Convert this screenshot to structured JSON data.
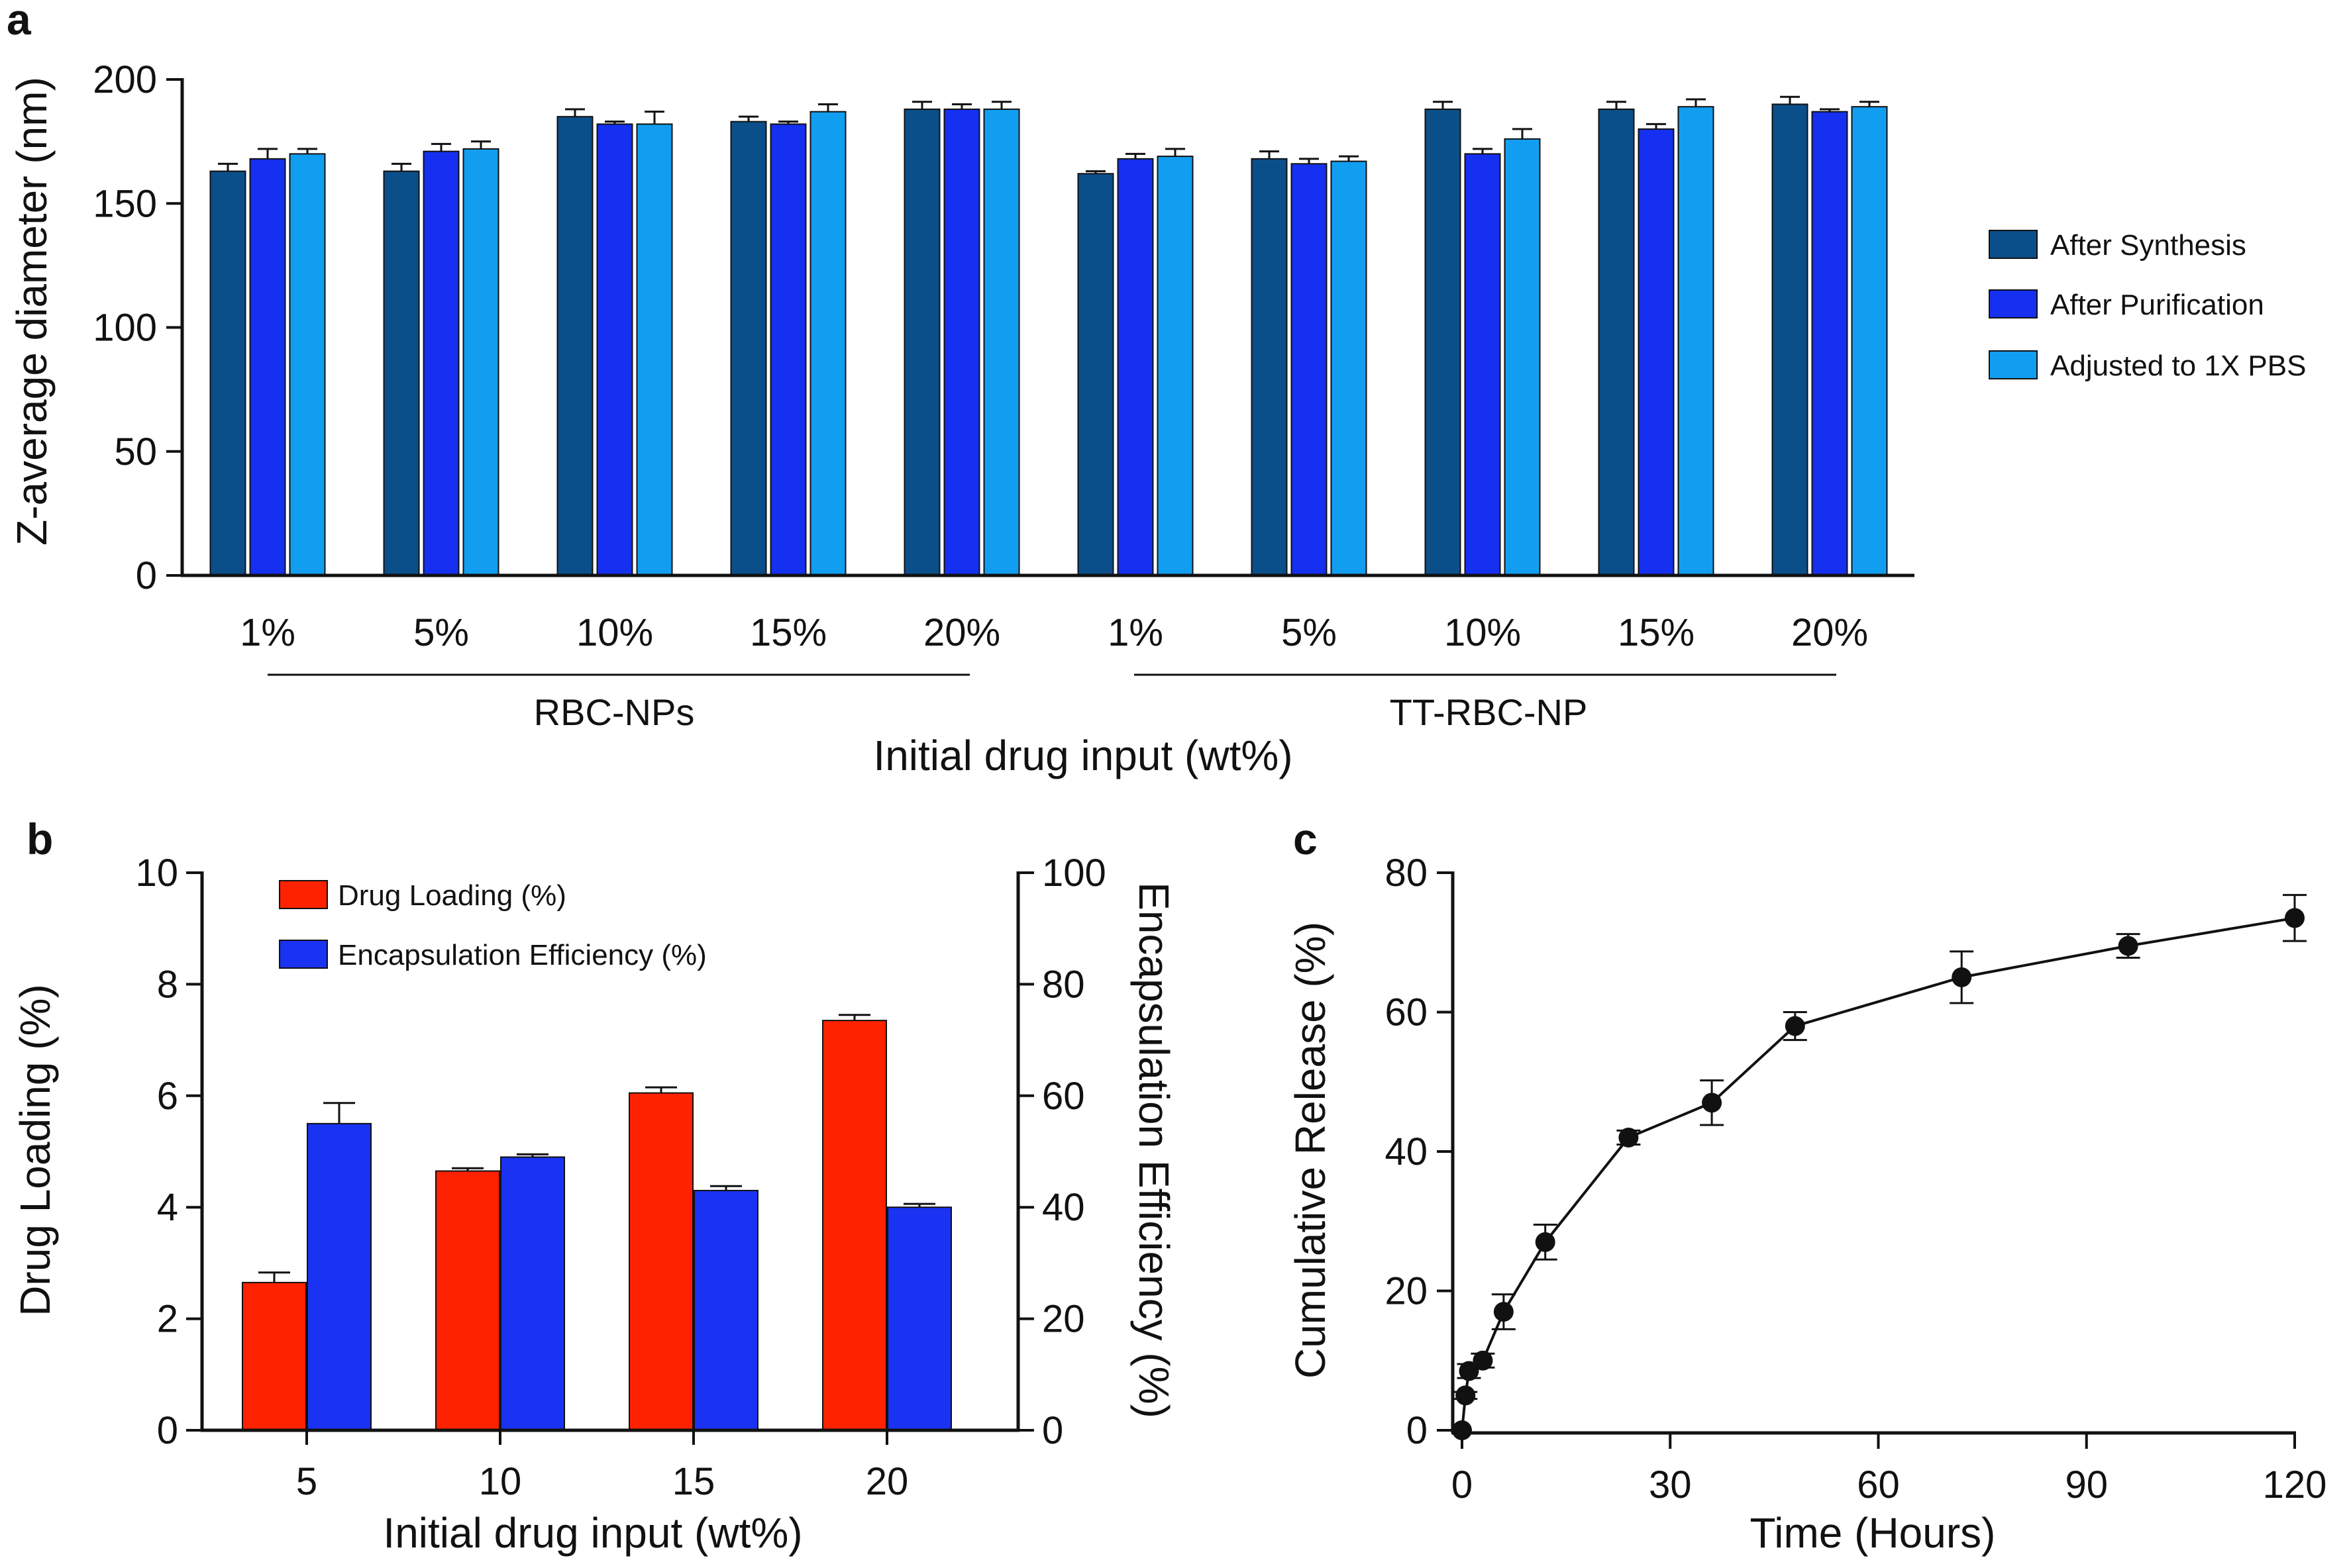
{
  "colors": {
    "after_synthesis": "#0b4f8a",
    "after_purification": "#1530f0",
    "adjusted_pbs": "#129ef0",
    "drug_loading": "#ff2200",
    "encapsulation_efficiency": "#1a32f2",
    "axis": "#111111"
  },
  "chart_data": [
    {
      "panel": "a",
      "type": "bar",
      "categories": [
        "1%",
        "5%",
        "10%",
        "15%",
        "20%",
        "1%",
        "5%",
        "10%",
        "15%",
        "20%"
      ],
      "groups": [
        {
          "label": "RBC-NPs",
          "range": [
            0,
            4
          ]
        },
        {
          "label": "TT-RBC-NP",
          "range": [
            5,
            9
          ]
        }
      ],
      "series": [
        {
          "name": "After Synthesis",
          "color_key": "after_synthesis",
          "values": [
            163,
            163,
            185,
            183,
            188,
            162,
            168,
            188,
            188,
            190
          ],
          "errors": [
            3,
            3,
            3,
            2,
            3,
            1,
            3,
            3,
            3,
            3
          ]
        },
        {
          "name": "After Purification",
          "color_key": "after_purification",
          "values": [
            168,
            171,
            182,
            182,
            188,
            168,
            166,
            170,
            180,
            187
          ],
          "errors": [
            4,
            3,
            1,
            1,
            2,
            2,
            2,
            2,
            2,
            1
          ]
        },
        {
          "name": "Adjusted to 1X PBS",
          "color_key": "adjusted_pbs",
          "values": [
            170,
            172,
            182,
            187,
            188,
            169,
            167,
            176,
            189,
            189
          ],
          "errors": [
            2,
            3,
            5,
            3,
            3,
            3,
            2,
            4,
            3,
            2
          ]
        }
      ],
      "xlabel": "Initial drug input (wt%)",
      "ylabel": "Z-average diameter (nm)",
      "ylim": [
        0,
        200
      ],
      "yticks": [
        "0",
        "50",
        "100",
        "150",
        "200"
      ],
      "legend_position": "right"
    },
    {
      "panel": "b",
      "type": "bar",
      "categories": [
        "5",
        "10",
        "15",
        "20"
      ],
      "series": [
        {
          "name": "Drug Loading (%)",
          "axis": "left",
          "color_key": "drug_loading",
          "values": [
            2.65,
            4.65,
            6.05,
            7.35
          ],
          "errors": [
            0.18,
            0.05,
            0.1,
            0.1
          ]
        },
        {
          "name": "Encapsulation Efficiency (%)",
          "axis": "right",
          "color_key": "encapsulation_efficiency",
          "values": [
            55,
            49,
            43,
            40
          ],
          "errors": [
            3.7,
            0.5,
            0.8,
            0.6
          ]
        }
      ],
      "xlabel": "Initial drug input (wt%)",
      "ylabel": "Drug Loading (%)",
      "ylabel_right": "Encapsulation Efficiency (%)",
      "ylim": [
        0,
        10
      ],
      "ylim_right": [
        0,
        100
      ],
      "yticks": [
        "0",
        "2",
        "4",
        "6",
        "8",
        "10"
      ],
      "yticks_right": [
        "0",
        "20",
        "40",
        "60",
        "80",
        "100"
      ],
      "legend_position": "top-left"
    },
    {
      "panel": "c",
      "type": "line",
      "x": [
        0,
        0.5,
        1,
        3,
        6,
        12,
        24,
        36,
        48,
        72,
        96,
        120
      ],
      "y": [
        0,
        5,
        8.5,
        10,
        17,
        27,
        42,
        47,
        58,
        65,
        69.5,
        73.5
      ],
      "errors": [
        0,
        0.5,
        1,
        1,
        2.5,
        2.5,
        1,
        3.2,
        2,
        3.7,
        1.7,
        3.3
      ],
      "xlabel": "Time (Hours)",
      "ylabel": "Cumulative Release (%)",
      "xlim": [
        0,
        120
      ],
      "ylim": [
        0,
        80
      ],
      "xticks": [
        "0",
        "30",
        "60",
        "90",
        "120"
      ],
      "yticks": [
        "0",
        "20",
        "40",
        "60",
        "80"
      ]
    }
  ]
}
